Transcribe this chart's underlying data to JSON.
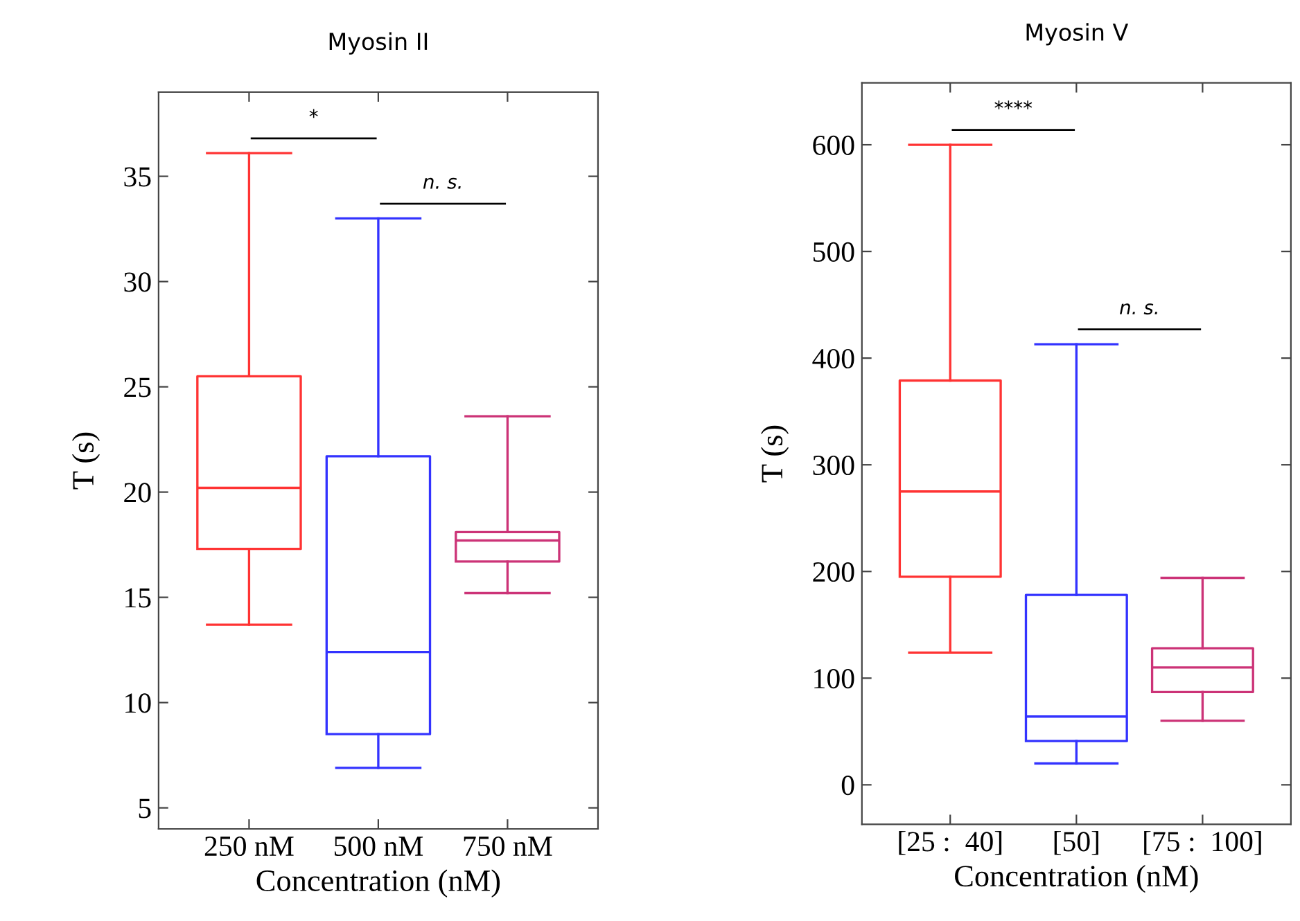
{
  "chart_data": [
    {
      "type": "box",
      "title": "Myosin II",
      "xlabel": "Concentration (nM)",
      "ylabel": "T (s)",
      "categories": [
        "250 nM",
        "500 nM",
        "750 nM"
      ],
      "ylim": [
        4,
        39
      ],
      "yticks": [
        5,
        10,
        15,
        20,
        25,
        30,
        35
      ],
      "grid": false,
      "annotations": [
        "*",
        "n. s."
      ],
      "series": [
        {
          "color": "#ff3333",
          "boxes": [
            {
              "low": 13.7,
              "q1": 17.3,
              "median": 20.2,
              "q3": 25.5,
              "high": 36.1
            },
            null,
            null
          ]
        },
        {
          "color": "#3333ff",
          "boxes": [
            null,
            {
              "low": 6.9,
              "q1": 8.5,
              "median": 12.4,
              "q3": 21.7,
              "high": 33.0
            },
            null
          ]
        },
        {
          "color": "#cc3377",
          "boxes": [
            null,
            null,
            {
              "low": 15.2,
              "q1": 16.7,
              "median": 17.7,
              "q3": 18.1,
              "high": 23.6
            }
          ]
        }
      ]
    },
    {
      "type": "box",
      "title": "Myosin V",
      "xlabel": "Concentration (nM)",
      "ylabel": "T (s)",
      "categories": [
        "[25 :  40]",
        "[50]",
        "[75 :  100]"
      ],
      "ylim": [
        -37,
        658
      ],
      "yticks": [
        0,
        100,
        200,
        300,
        400,
        500,
        600
      ],
      "grid": false,
      "annotations": [
        "****",
        "n. s."
      ],
      "series": [
        {
          "color": "#ff3333",
          "boxes": [
            {
              "low": 124,
              "q1": 195,
              "median": 275,
              "q3": 379,
              "high": 600
            },
            null,
            null
          ]
        },
        {
          "color": "#3333ff",
          "boxes": [
            null,
            {
              "low": 20,
              "q1": 41,
              "median": 64,
              "q3": 178,
              "high": 413
            },
            null
          ]
        },
        {
          "color": "#cc3377",
          "boxes": [
            null,
            null,
            {
              "low": 60,
              "q1": 87,
              "median": 110,
              "q3": 128,
              "high": 194
            }
          ]
        }
      ]
    }
  ]
}
